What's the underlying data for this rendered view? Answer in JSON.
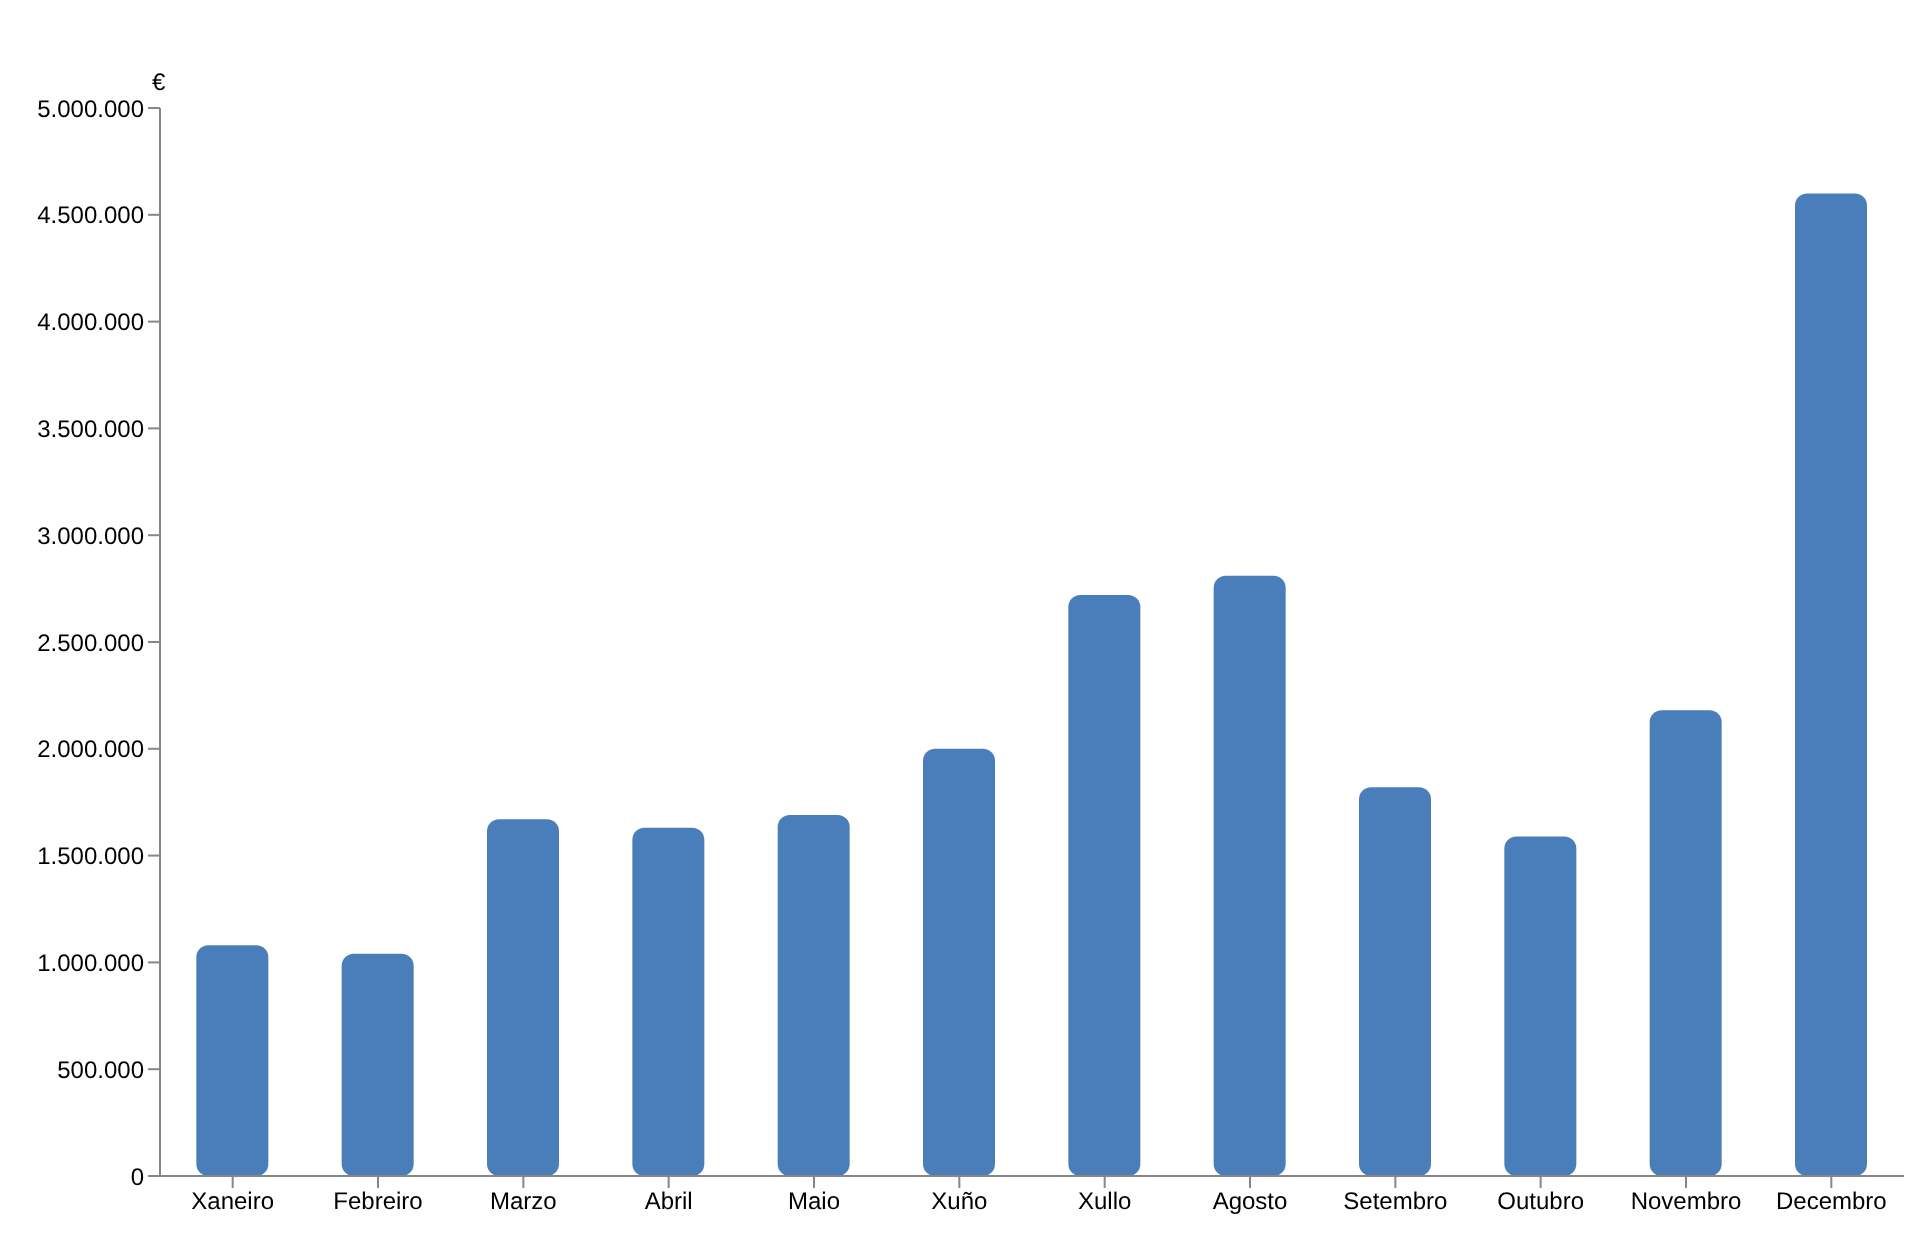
{
  "chart_data": {
    "type": "bar",
    "ylabel": "€",
    "categories": [
      "Xaneiro",
      "Febreiro",
      "Marzo",
      "Abril",
      "Maio",
      "Xuño",
      "Xullo",
      "Agosto",
      "Setembro",
      "Outubro",
      "Novembro",
      "Decembro"
    ],
    "values": [
      1080000,
      1040000,
      1670000,
      1630000,
      1690000,
      2000000,
      2720000,
      2810000,
      1820000,
      1590000,
      2180000,
      4600000
    ],
    "color": "#4a7ebb",
    "ylim": [
      0,
      5000000
    ],
    "yticks": [
      {
        "value": 0,
        "label": "0"
      },
      {
        "value": 500000,
        "label": "500.000"
      },
      {
        "value": 1000000,
        "label": "1.000.000"
      },
      {
        "value": 1500000,
        "label": "1.500.000"
      },
      {
        "value": 2000000,
        "label": "2.000.000"
      },
      {
        "value": 2500000,
        "label": "2.500.000"
      },
      {
        "value": 3000000,
        "label": "3.000.000"
      },
      {
        "value": 3500000,
        "label": "3.500.000"
      },
      {
        "value": 4000000,
        "label": "4.000.000"
      },
      {
        "value": 4500000,
        "label": "4.500.000"
      },
      {
        "value": 5000000,
        "label": "5.000.000"
      }
    ],
    "grid": false,
    "legend": false
  }
}
